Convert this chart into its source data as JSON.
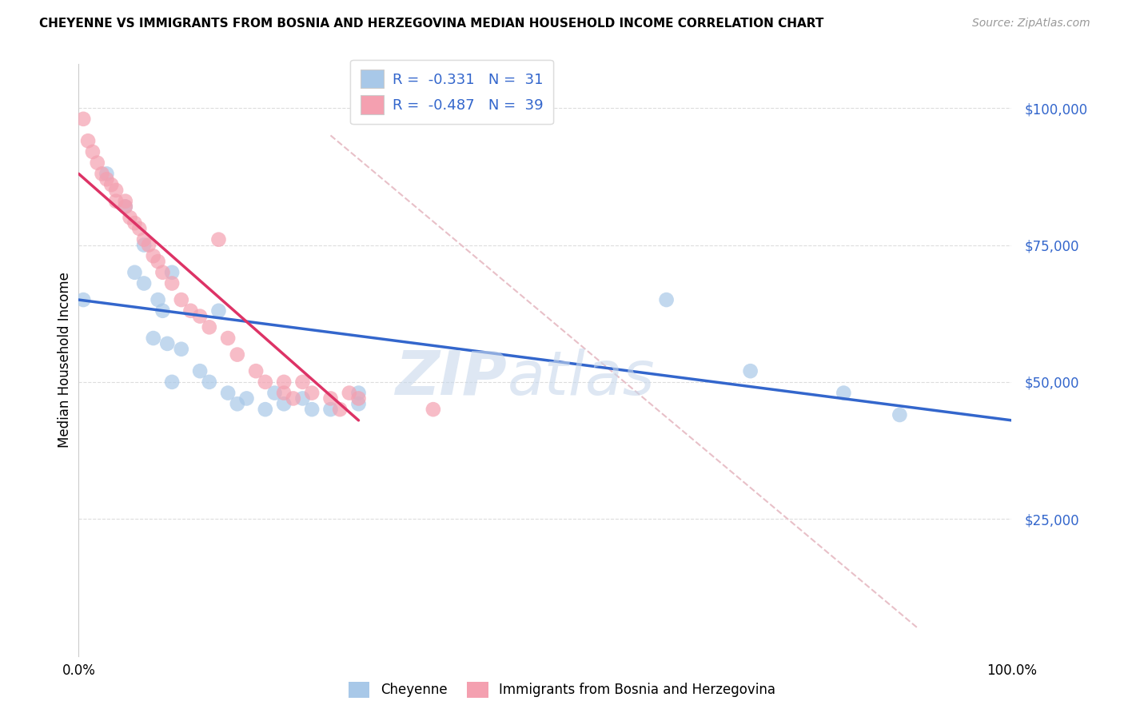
{
  "title": "CHEYENNE VS IMMIGRANTS FROM BOSNIA AND HERZEGOVINA MEDIAN HOUSEHOLD INCOME CORRELATION CHART",
  "source": "Source: ZipAtlas.com",
  "ylabel": "Median Household Income",
  "legend_label1": "Cheyenne",
  "legend_label2": "Immigrants from Bosnia and Herzegovina",
  "legend_R1": "-0.331",
  "legend_N1": "31",
  "legend_R2": "-0.487",
  "legend_N2": "39",
  "color_blue": "#A8C8E8",
  "color_pink": "#F4A0B0",
  "color_blue_line": "#3366CC",
  "color_pink_line": "#DD3366",
  "color_ref_line": "#E8C0C8",
  "watermark_top": "ZIP",
  "watermark_bot": "atlas",
  "watermark_color": "#C8D8EC",
  "blue_x": [
    0.005,
    0.03,
    0.05,
    0.06,
    0.07,
    0.07,
    0.08,
    0.085,
    0.09,
    0.095,
    0.1,
    0.1,
    0.11,
    0.13,
    0.14,
    0.15,
    0.16,
    0.17,
    0.18,
    0.2,
    0.21,
    0.22,
    0.24,
    0.25,
    0.27,
    0.3,
    0.3,
    0.63,
    0.72,
    0.82,
    0.88
  ],
  "blue_y": [
    65000,
    88000,
    82000,
    70000,
    75000,
    68000,
    58000,
    65000,
    63000,
    57000,
    50000,
    70000,
    56000,
    52000,
    50000,
    63000,
    48000,
    46000,
    47000,
    45000,
    48000,
    46000,
    47000,
    45000,
    45000,
    48000,
    46000,
    65000,
    52000,
    48000,
    44000
  ],
  "pink_x": [
    0.005,
    0.01,
    0.015,
    0.02,
    0.025,
    0.03,
    0.035,
    0.04,
    0.04,
    0.05,
    0.05,
    0.055,
    0.06,
    0.065,
    0.07,
    0.075,
    0.08,
    0.085,
    0.09,
    0.1,
    0.11,
    0.12,
    0.13,
    0.14,
    0.15,
    0.16,
    0.17,
    0.19,
    0.2,
    0.22,
    0.22,
    0.23,
    0.24,
    0.25,
    0.27,
    0.28,
    0.29,
    0.3,
    0.38
  ],
  "pink_y": [
    98000,
    94000,
    92000,
    90000,
    88000,
    87000,
    86000,
    85000,
    83000,
    83000,
    82000,
    80000,
    79000,
    78000,
    76000,
    75000,
    73000,
    72000,
    70000,
    68000,
    65000,
    63000,
    62000,
    60000,
    76000,
    58000,
    55000,
    52000,
    50000,
    50000,
    48000,
    47000,
    50000,
    48000,
    47000,
    45000,
    48000,
    47000,
    45000
  ],
  "blue_line_x": [
    0.0,
    1.0
  ],
  "blue_line_y": [
    65000,
    43000
  ],
  "pink_line_x": [
    0.0,
    0.3
  ],
  "pink_line_y": [
    88000,
    43000
  ],
  "ref_line_x": [
    0.27,
    0.9
  ],
  "ref_line_y": [
    95000,
    5000
  ],
  "xlim": [
    0.0,
    1.0
  ],
  "ylim": [
    0,
    108000
  ],
  "yticks": [
    25000,
    50000,
    75000,
    100000
  ],
  "ytick_labels": [
    "$25,000",
    "$50,000",
    "$75,000",
    "$100,000"
  ],
  "title_fontsize": 11,
  "source_fontsize": 10,
  "tick_fontsize": 12,
  "ylabel_fontsize": 12
}
